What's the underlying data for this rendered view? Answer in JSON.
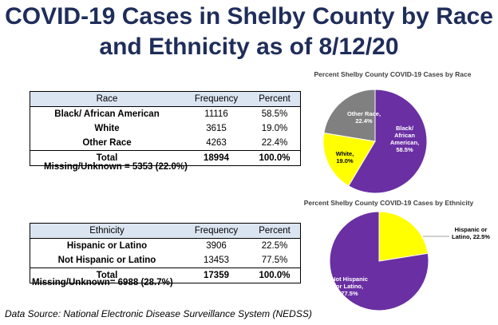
{
  "title": {
    "line1": "COVID-19 Cases in Shelby County by Race",
    "line2": "and Ethnicity as of 8/12/20"
  },
  "race_table": {
    "headers": [
      "Race",
      "Frequency",
      "Percent"
    ],
    "rows": [
      {
        "label": "Black/ African American",
        "frequency": "11116",
        "percent": "58.5%"
      },
      {
        "label": "White",
        "frequency": "3615",
        "percent": "19.0%"
      },
      {
        "label": "Other Race",
        "frequency": "4263",
        "percent": "22.4%"
      }
    ],
    "total": {
      "label": "Total",
      "frequency": "18994",
      "percent": "100.0%"
    },
    "missing": "Missing/Unknown = 5353 (22.0%)"
  },
  "ethnicity_table": {
    "headers": [
      "Ethnicity",
      "Frequency",
      "Percent"
    ],
    "rows": [
      {
        "label": "Hispanic or Latino",
        "frequency": "3906",
        "percent": "22.5%"
      },
      {
        "label": "Not Hispanic or Latino",
        "frequency": "13453",
        "percent": "77.5%"
      }
    ],
    "total": {
      "label": "Total",
      "frequency": "17359",
      "percent": "100.0%"
    },
    "missing": "Missing/Unknown= 6988 (28.7%)"
  },
  "source": "Data Source: National Electronic Disease Surveillance System (NEDSS)",
  "colors": {
    "purple": "#6a2fa3",
    "yellow": "#ffff00",
    "gray": "#808080",
    "title": "#1f2d5a"
  },
  "chart_data": [
    {
      "type": "pie",
      "title": "Percent Shelby County COVID-19 Cases by Race",
      "slices": [
        {
          "label_lines": [
            "Black/",
            "African",
            "American,",
            "58.5%"
          ],
          "value": 58.5,
          "color": "#6a2fa3",
          "text_color": "#ffffff"
        },
        {
          "label_lines": [
            "White,",
            "19.0%"
          ],
          "value": 19.0,
          "color": "#ffff00",
          "text_color": "#000000"
        },
        {
          "label_lines": [
            "Other Race,",
            "22.4%"
          ],
          "value": 22.4,
          "color": "#808080",
          "text_color": "#ffffff"
        }
      ]
    },
    {
      "type": "pie",
      "title": "Percent Shelby County COVID-19 Cases by Ethnicity",
      "slices": [
        {
          "label_lines": [
            "Hispanic or",
            "Latino, 22.5%"
          ],
          "value": 22.5,
          "color": "#ffff00",
          "text_color": "#000000"
        },
        {
          "label_lines": [
            "Not Hispanic",
            "or Latino,",
            "77.5%"
          ],
          "value": 77.5,
          "color": "#6a2fa3",
          "text_color": "#ffffff"
        }
      ]
    }
  ]
}
